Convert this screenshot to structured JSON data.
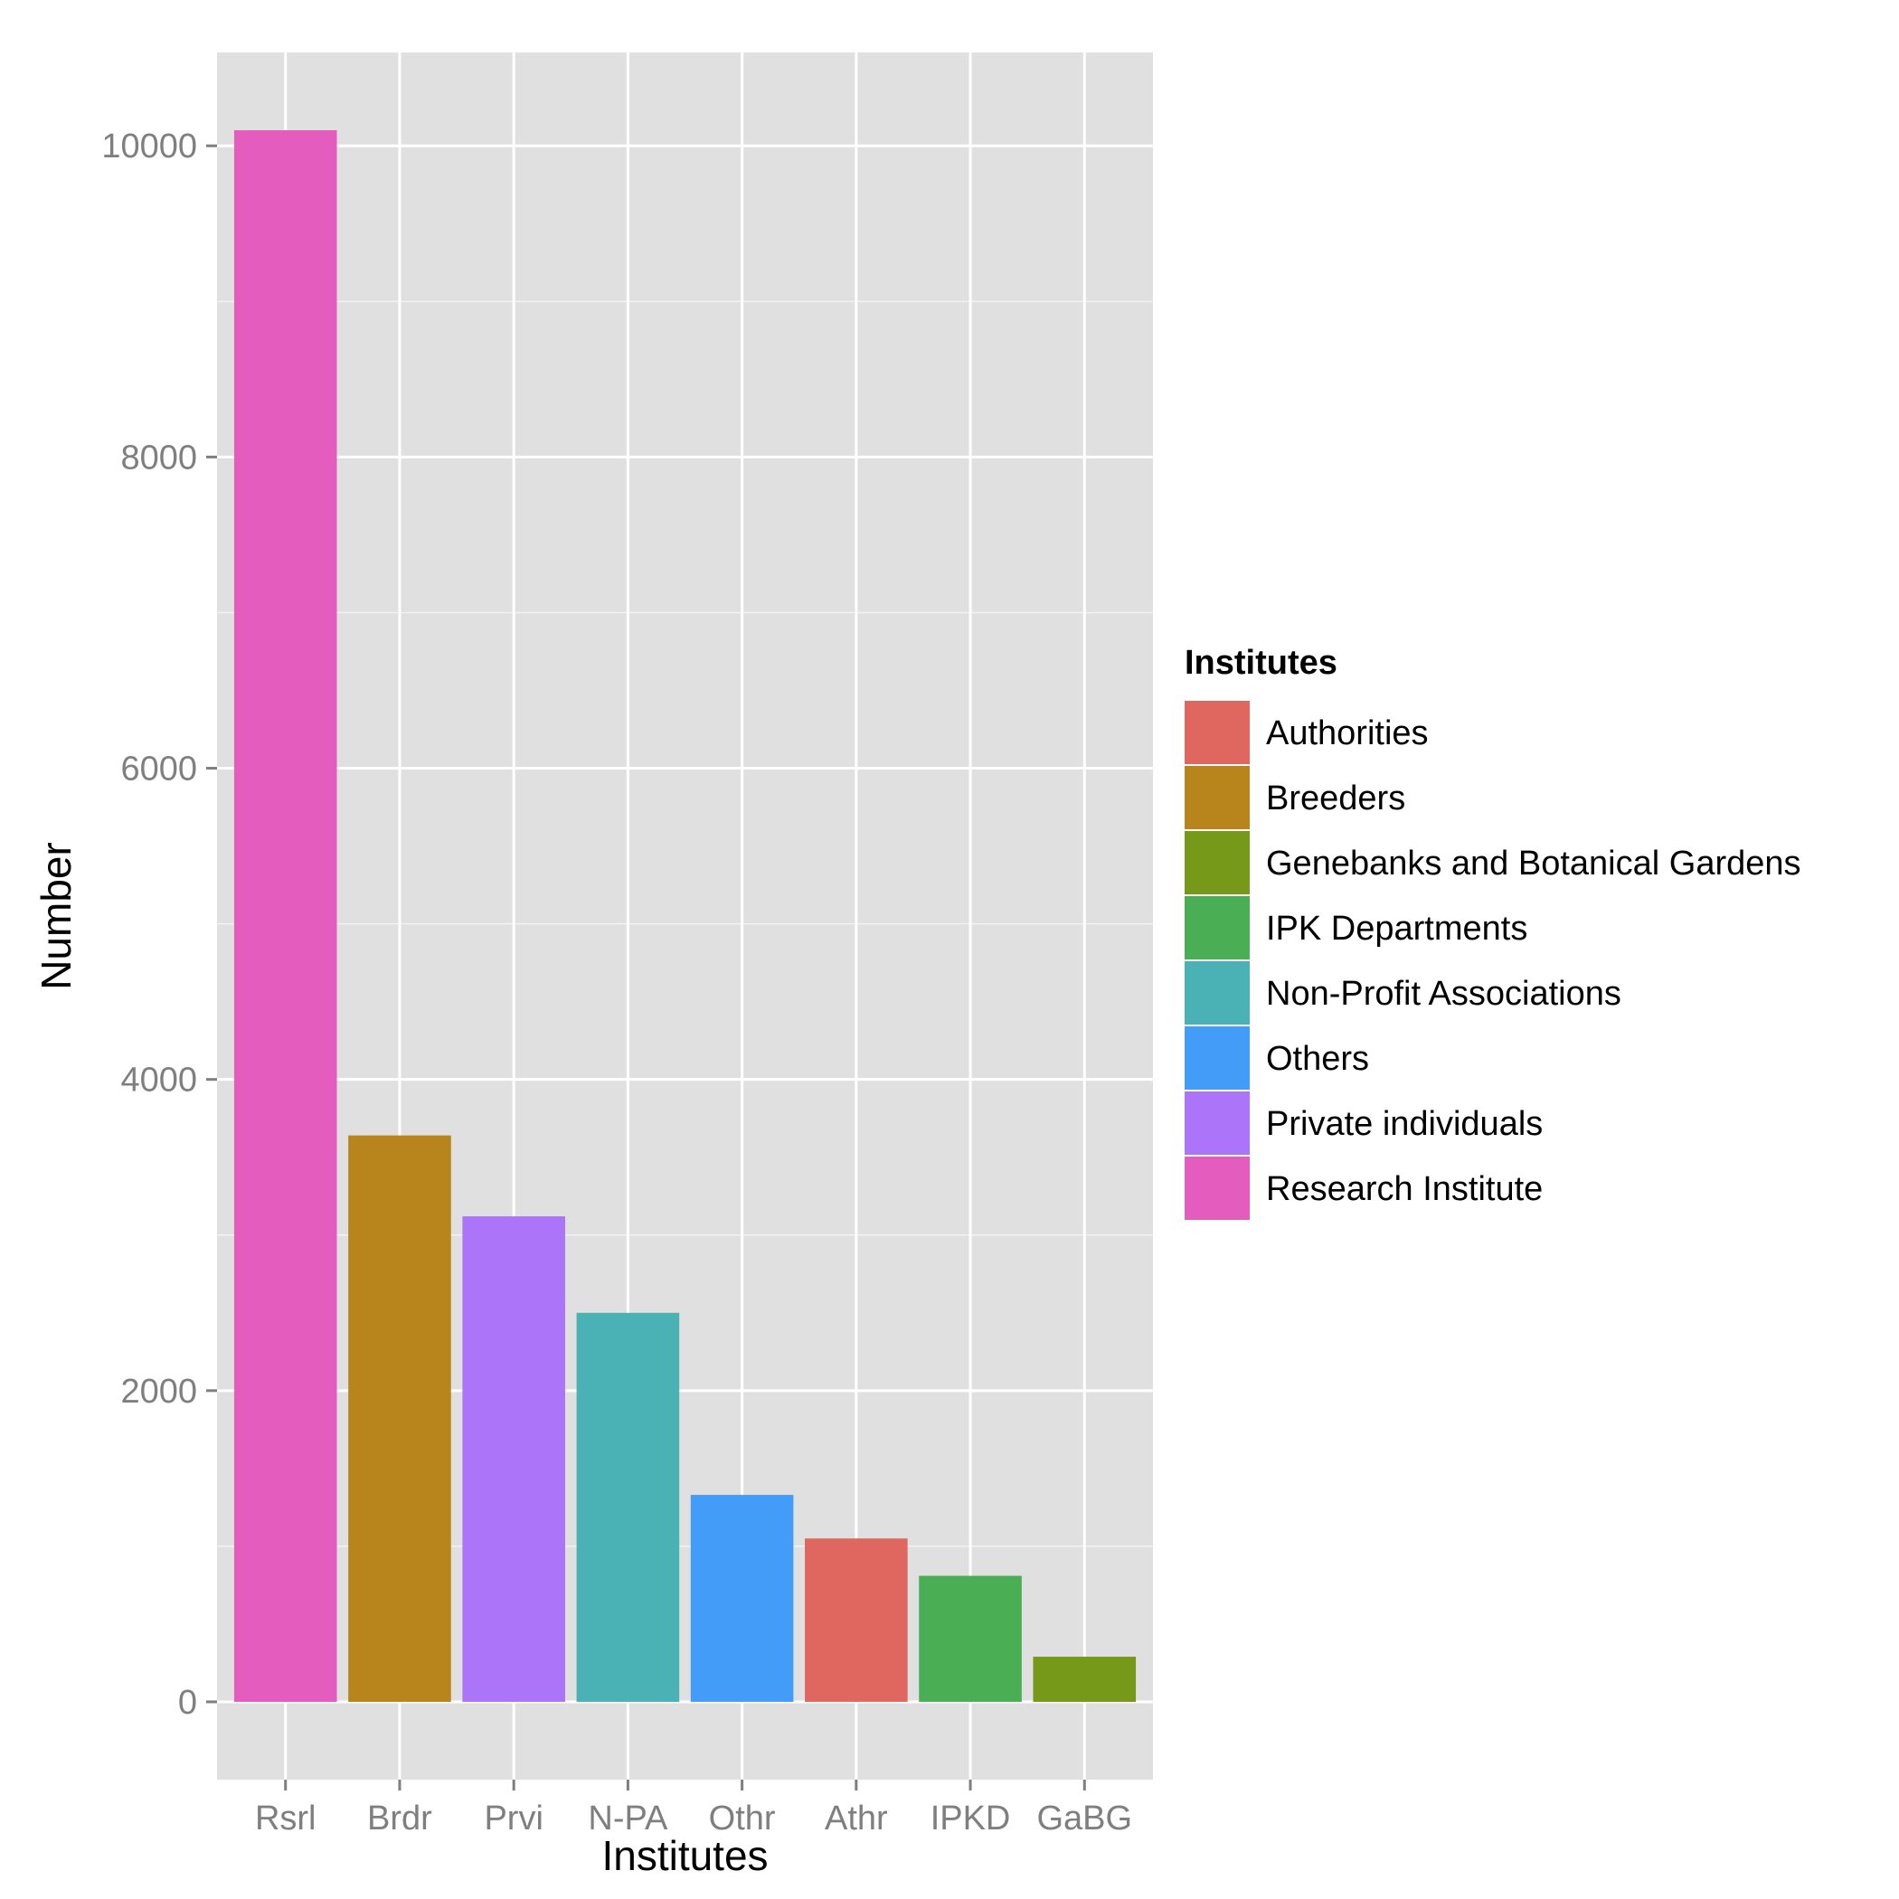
{
  "chart_data": {
    "type": "bar",
    "categories": [
      "Rsrl",
      "Brdr",
      "Prvi",
      "N-PA",
      "Othr",
      "Athr",
      "IPKD",
      "GaBG"
    ],
    "values": [
      10100,
      3640,
      3120,
      2500,
      1330,
      1050,
      810,
      290
    ],
    "fill_groups": [
      "Research Institute",
      "Breeders",
      "Private individuals",
      "Non-Profit Associations",
      "Others",
      "Authorities",
      "IPK Departments",
      "Genebanks and Botanical Gardens"
    ],
    "xlabel": "Institutes",
    "ylabel": "Number",
    "ylim": [
      -500,
      10600
    ],
    "yticks": [
      0,
      2000,
      4000,
      6000,
      8000,
      10000
    ],
    "ytick_labels": [
      "0",
      "2000",
      "4000",
      "6000",
      "8000",
      "10000"
    ],
    "grid": true,
    "panel_background": "#e0e0e0",
    "legend": {
      "title": "Institutes",
      "placement": "right",
      "entries": [
        {
          "label": "Authorities",
          "color": "#e0675f"
        },
        {
          "label": "Breeders",
          "color": "#b7851c"
        },
        {
          "label": "Genebanks and Botanical Gardens",
          "color": "#76991a"
        },
        {
          "label": "IPK Departments",
          "color": "#4aae55"
        },
        {
          "label": "Non-Profit Associations",
          "color": "#4ab1b4"
        },
        {
          "label": "Others",
          "color": "#449cf9"
        },
        {
          "label": "Private individuals",
          "color": "#ac74f9"
        },
        {
          "label": "Research Institute",
          "color": "#e55cbf"
        }
      ]
    }
  }
}
